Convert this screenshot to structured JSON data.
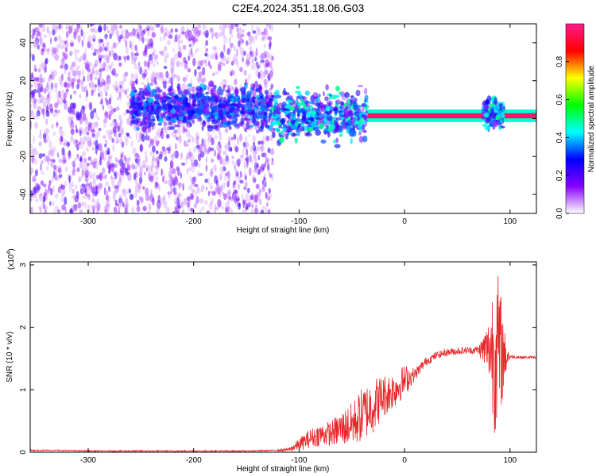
{
  "title": "C2E4.2024.351.18.06.G03",
  "colorbar": {
    "label": "Normalized spectral amplitude",
    "range": [
      0,
      1
    ],
    "ticks": [
      "0.0",
      "0.2",
      "0.4",
      "0.6",
      "0.8"
    ],
    "tick_values": [
      0.0,
      0.2,
      0.4,
      0.6,
      0.8
    ],
    "colors": [
      "#ffffff",
      "#8800ff",
      "#0000ff",
      "#00ffff",
      "#00ff00",
      "#ffff00",
      "#ff0000",
      "#ff1a8c"
    ]
  },
  "chart_data": [
    {
      "type": "heatmap",
      "xlabel": "Height of straight line (km)",
      "ylabel": "Frequency (Hz)",
      "xlim": [
        -355,
        125
      ],
      "ylim": [
        -50,
        50
      ],
      "xticks": [
        -300,
        -200,
        -100,
        0,
        100
      ],
      "yticks": [
        -40,
        -20,
        0,
        20,
        40
      ],
      "xtick_labels": [
        "-300",
        "-200",
        "-100",
        "0",
        "100"
      ],
      "ytick_labels": [
        "-40",
        "-20",
        "0",
        "20",
        "40"
      ],
      "regions": [
        {
          "x": [
            -355,
            -125
          ],
          "kind": "noise",
          "amplitude": 0.15
        },
        {
          "x": [
            -260,
            -125
          ],
          "kind": "band",
          "center_hz": 6,
          "width_hz": 10,
          "amplitude": 0.3
        },
        {
          "x": [
            -125,
            -35
          ],
          "kind": "band",
          "center_hz": 2,
          "width_hz": 12,
          "amplitude": 0.4
        },
        {
          "x": [
            -35,
            125
          ],
          "kind": "line",
          "center_hz": 1.5,
          "width_hz": 3,
          "amplitude": 0.95
        },
        {
          "x": [
            75,
            95
          ],
          "kind": "band",
          "center_hz": 3,
          "width_hz": 8,
          "amplitude": 0.4
        }
      ]
    },
    {
      "type": "line",
      "xlabel": "Height of straight line (km)",
      "ylabel": "SNR (10 * v/v)",
      "scale_label": "(x10",
      "scale_exp": "4",
      "scale_close": ")",
      "xlim": [
        -355,
        125
      ],
      "ylim": [
        0,
        3.05
      ],
      "xticks": [
        -300,
        -200,
        -100,
        0,
        100
      ],
      "yticks": [
        0,
        1,
        2,
        3
      ],
      "xtick_labels": [
        "-300",
        "-200",
        "-100",
        "0",
        "100"
      ],
      "ytick_labels": [
        "0",
        "1",
        "2",
        "3"
      ],
      "color": "#e8262a",
      "x": [
        -355,
        -330,
        -300,
        -250,
        -200,
        -150,
        -120,
        -110,
        -100,
        -90,
        -80,
        -70,
        -60,
        -50,
        -40,
        -30,
        -20,
        -10,
        0,
        10,
        20,
        30,
        40,
        50,
        60,
        70,
        80,
        85,
        90,
        95,
        100,
        110,
        120,
        125
      ],
      "values": [
        0.03,
        0.03,
        0.02,
        0.02,
        0.02,
        0.02,
        0.03,
        0.04,
        0.12,
        0.22,
        0.28,
        0.3,
        0.38,
        0.45,
        0.6,
        0.75,
        0.9,
        1.0,
        1.15,
        1.25,
        1.45,
        1.55,
        1.6,
        1.62,
        1.63,
        1.64,
        1.65,
        1.7,
        1.6,
        1.55,
        1.53,
        1.52,
        1.52,
        1.52
      ],
      "noise_amplitude": [
        0.01,
        0.01,
        0.01,
        0.01,
        0.01,
        0.01,
        0.01,
        0.03,
        0.1,
        0.15,
        0.18,
        0.2,
        0.28,
        0.35,
        0.45,
        0.45,
        0.35,
        0.3,
        0.25,
        0.1,
        0.07,
        0.06,
        0.06,
        0.06,
        0.06,
        0.06,
        0.5,
        1.4,
        1.2,
        0.4,
        0.03,
        0.02,
        0.02,
        0.02
      ]
    }
  ]
}
